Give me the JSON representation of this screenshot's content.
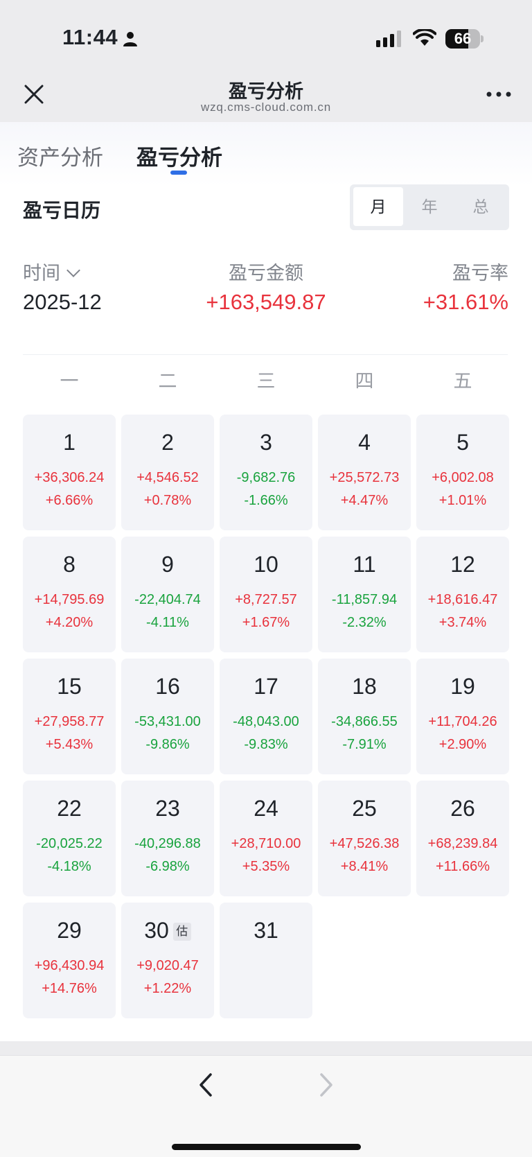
{
  "status_bar": {
    "time": "11:44",
    "battery": "66",
    "battery_level": 0.66
  },
  "nav": {
    "title": "盈亏分析",
    "url": "wzq.cms-cloud.com.cn"
  },
  "tabs": [
    {
      "label": "资产分析",
      "active": false
    },
    {
      "label": "盈亏分析",
      "active": true
    }
  ],
  "calendar": {
    "title": "盈亏日历",
    "periods": [
      "月",
      "年",
      "总"
    ],
    "selected_period": "月",
    "summary": {
      "time_label": "时间",
      "amount_label": "盈亏金额",
      "rate_label": "盈亏率",
      "month": "2025-12",
      "amount": "+163,549.87",
      "rate": "+31.61%"
    },
    "weekdays": [
      "一",
      "二",
      "三",
      "四",
      "五"
    ],
    "estimated_badge": "估",
    "days": [
      {
        "day": "1",
        "amount": "+36,306.24",
        "pct": "+6.66%",
        "trend": "up"
      },
      {
        "day": "2",
        "amount": "+4,546.52",
        "pct": "+0.78%",
        "trend": "up"
      },
      {
        "day": "3",
        "amount": "-9,682.76",
        "pct": "-1.66%",
        "trend": "down"
      },
      {
        "day": "4",
        "amount": "+25,572.73",
        "pct": "+4.47%",
        "trend": "up"
      },
      {
        "day": "5",
        "amount": "+6,002.08",
        "pct": "+1.01%",
        "trend": "up"
      },
      {
        "day": "8",
        "amount": "+14,795.69",
        "pct": "+4.20%",
        "trend": "up"
      },
      {
        "day": "9",
        "amount": "-22,404.74",
        "pct": "-4.11%",
        "trend": "down"
      },
      {
        "day": "10",
        "amount": "+8,727.57",
        "pct": "+1.67%",
        "trend": "up"
      },
      {
        "day": "11",
        "amount": "-11,857.94",
        "pct": "-2.32%",
        "trend": "down"
      },
      {
        "day": "12",
        "amount": "+18,616.47",
        "pct": "+3.74%",
        "trend": "up"
      },
      {
        "day": "15",
        "amount": "+27,958.77",
        "pct": "+5.43%",
        "trend": "up"
      },
      {
        "day": "16",
        "amount": "-53,431.00",
        "pct": "-9.86%",
        "trend": "down"
      },
      {
        "day": "17",
        "amount": "-48,043.00",
        "pct": "-9.83%",
        "trend": "down"
      },
      {
        "day": "18",
        "amount": "-34,866.55",
        "pct": "-7.91%",
        "trend": "down"
      },
      {
        "day": "19",
        "amount": "+11,704.26",
        "pct": "+2.90%",
        "trend": "up"
      },
      {
        "day": "22",
        "amount": "-20,025.22",
        "pct": "-4.18%",
        "trend": "down"
      },
      {
        "day": "23",
        "amount": "-40,296.88",
        "pct": "-6.98%",
        "trend": "down"
      },
      {
        "day": "24",
        "amount": "+28,710.00",
        "pct": "+5.35%",
        "trend": "up"
      },
      {
        "day": "25",
        "amount": "+47,526.38",
        "pct": "+8.41%",
        "trend": "up"
      },
      {
        "day": "26",
        "amount": "+68,239.84",
        "pct": "+11.66%",
        "trend": "up"
      },
      {
        "day": "29",
        "amount": "+96,430.94",
        "pct": "+14.76%",
        "trend": "up"
      },
      {
        "day": "30",
        "amount": "+9,020.47",
        "pct": "+1.22%",
        "trend": "up",
        "estimated": true
      },
      {
        "day": "31",
        "amount": "",
        "pct": "",
        "trend": "none"
      }
    ]
  },
  "colors": {
    "up": "#e8323c",
    "down": "#19a33e",
    "accent": "#2f6fe5"
  },
  "bottom_nav": {
    "back_icon": "chevron-left-icon",
    "forward_icon": "chevron-right-icon",
    "forward_enabled": false
  }
}
